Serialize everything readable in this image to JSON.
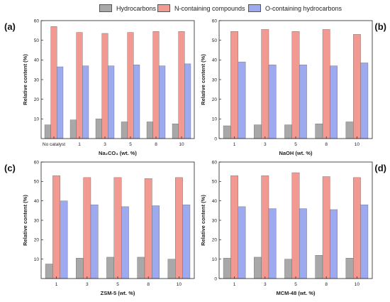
{
  "legend": [
    {
      "label": "Hydrocarbons",
      "color": "#a8a8a8"
    },
    {
      "label": "N-containing compounds",
      "color": "#f29a92"
    },
    {
      "label": "O-containing hydrocarbons",
      "color": "#9eaaf0"
    }
  ],
  "chart_data": [
    {
      "type": "bar",
      "panel": "(a)",
      "categories": [
        "No catalyst",
        "1",
        "3",
        "5",
        "8",
        "10"
      ],
      "xlabel": "Na₂CO₃ (wt. %)",
      "ylabel": "Relative content (%)",
      "ylim": [
        0,
        60
      ],
      "yticks": [
        10,
        20,
        30,
        40,
        50,
        60
      ],
      "series": [
        {
          "name": "Hydrocarbons",
          "values": [
            7.0,
            9.5,
            10.0,
            8.5,
            8.5,
            7.5
          ]
        },
        {
          "name": "N-containing compounds",
          "values": [
            57.0,
            54.0,
            53.5,
            54.0,
            54.5,
            54.5
          ]
        },
        {
          "name": "O-containing hydrocarbons",
          "values": [
            36.5,
            37.0,
            37.0,
            37.5,
            37.0,
            38.0
          ]
        }
      ]
    },
    {
      "type": "bar",
      "panel": "(b)",
      "categories": [
        "1",
        "3",
        "5",
        "8",
        "10"
      ],
      "xlabel": "NaOH (wt. %)",
      "ylabel": "Relative content (%)",
      "ylim": [
        0,
        60
      ],
      "yticks": [
        0,
        10,
        20,
        30,
        40,
        50,
        60
      ],
      "series": [
        {
          "name": "Hydrocarbons",
          "values": [
            6.5,
            7.0,
            7.0,
            7.5,
            8.5
          ]
        },
        {
          "name": "N-containing compounds",
          "values": [
            54.5,
            55.5,
            54.5,
            55.5,
            53.0
          ]
        },
        {
          "name": "O-containing hydrocarbons",
          "values": [
            39.0,
            37.5,
            37.5,
            37.0,
            38.5
          ]
        }
      ]
    },
    {
      "type": "bar",
      "panel": "(c)",
      "categories": [
        "1",
        "3",
        "5",
        "8",
        "10"
      ],
      "xlabel": "ZSM-5 (wt. %)",
      "ylabel": "Relative content (%)",
      "ylim": [
        0,
        60
      ],
      "yticks": [
        10,
        20,
        30,
        40,
        50,
        60
      ],
      "series": [
        {
          "name": "Hydrocarbons",
          "values": [
            7.5,
            10.5,
            11.0,
            11.0,
            10.0
          ]
        },
        {
          "name": "N-containing compounds",
          "values": [
            53.0,
            52.0,
            52.0,
            51.5,
            52.0
          ]
        },
        {
          "name": "O-containing hydrocarbons",
          "values": [
            40.0,
            38.0,
            37.0,
            37.5,
            38.0
          ]
        }
      ]
    },
    {
      "type": "bar",
      "panel": "(d)",
      "categories": [
        "1",
        "3",
        "5",
        "8",
        "10"
      ],
      "xlabel": "MCM-48 (wt. %)",
      "ylabel": "Relative content (%)",
      "ylim": [
        0,
        60
      ],
      "yticks": [
        0,
        10,
        20,
        30,
        40,
        50,
        60
      ],
      "series": [
        {
          "name": "Hydrocarbons",
          "values": [
            10.5,
            11.0,
            10.0,
            12.0,
            10.5
          ]
        },
        {
          "name": "N-containing compounds",
          "values": [
            53.0,
            53.0,
            54.5,
            52.5,
            52.0
          ]
        },
        {
          "name": "O-containing hydrocarbons",
          "values": [
            37.0,
            36.0,
            36.0,
            35.5,
            38.0
          ]
        }
      ]
    }
  ]
}
